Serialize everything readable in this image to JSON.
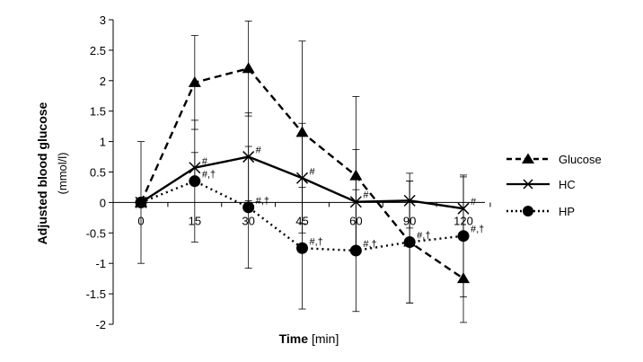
{
  "chart_data": {
    "type": "line",
    "x": [
      0,
      15,
      30,
      45,
      60,
      90,
      120
    ],
    "categories": [
      "0",
      "15",
      "30",
      "45",
      "60",
      "90",
      "120"
    ],
    "ylim": [
      -2,
      3
    ],
    "yticks": [
      "3",
      "2.5",
      "2",
      "1.5",
      "1",
      "0.5",
      "0",
      "-0.5",
      "-1",
      "-1.5",
      "-2"
    ],
    "ylabel_main": "Adjusted blood glucose",
    "ylabel_unit": "(mmol/l)",
    "xlabel_main": "Time",
    "xlabel_unit": "[min]",
    "grid": false,
    "legend_position": "right",
    "series": [
      {
        "name": "Glucose",
        "marker": "triangle",
        "line": "dashed",
        "values": [
          0,
          1.97,
          2.2,
          1.15,
          0.44,
          -0.65,
          -1.25
        ],
        "err": [
          0,
          0.77,
          0.78,
          1.5,
          1.3,
          1.0,
          0.72
        ],
        "annotations": [
          "",
          "",
          "",
          "",
          "",
          "",
          ""
        ]
      },
      {
        "name": "HC",
        "marker": "x",
        "line": "solid",
        "values": [
          0,
          0.57,
          0.75,
          0.4,
          0.01,
          0.03,
          -0.1
        ],
        "err": [
          0,
          0.25,
          0.72,
          0.9,
          0.86,
          0.45,
          0.52
        ],
        "annotations": [
          "",
          "#",
          "#",
          "#",
          "#",
          "",
          "#"
        ]
      },
      {
        "name": "HP",
        "marker": "circle",
        "line": "dotted",
        "values": [
          0,
          0.35,
          -0.08,
          -0.75,
          -0.79,
          -0.65,
          -0.55
        ],
        "err": [
          1.0,
          1.0,
          1.0,
          1.0,
          1.0,
          1.0,
          1.0
        ],
        "annotations": [
          "",
          "#,†",
          "#,†",
          "#,†",
          "#,†",
          "#,†",
          "#,†"
        ]
      }
    ]
  }
}
